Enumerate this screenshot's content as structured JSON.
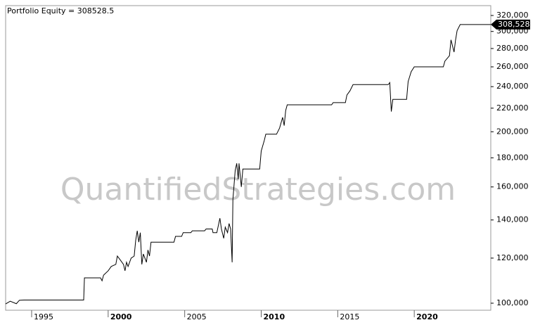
{
  "chart_data": {
    "type": "line",
    "title": "Portfolio Equity = 308528.5",
    "watermark": "QuantifiedStrategies.com",
    "end_label": "308,528",
    "end_value": 308528,
    "log_y": true,
    "color": "#000000",
    "xlim": [
      1993.3,
      2025
    ],
    "xticks": [
      1995,
      2000,
      2005,
      2010,
      2015,
      2020
    ],
    "ylim": [
      97200,
      333000
    ],
    "yticks": [
      {
        "value": 100000,
        "label": "100,000"
      },
      {
        "value": 120000,
        "label": "120,000"
      },
      {
        "value": 140000,
        "label": "140,000"
      },
      {
        "value": 160000,
        "label": "160,000"
      },
      {
        "value": 180000,
        "label": "180,000"
      },
      {
        "value": 200000,
        "label": "200,000"
      },
      {
        "value": 220000,
        "label": "220,000"
      },
      {
        "value": 240000,
        "label": "240,000"
      },
      {
        "value": 260000,
        "label": "260,000"
      },
      {
        "value": 280000,
        "label": "280,000"
      },
      {
        "value": 300000,
        "label": "300,000"
      },
      {
        "value": 320000,
        "label": "320,000"
      }
    ],
    "x": [
      1993.3,
      1993.6,
      1994.0,
      1994.2,
      1994.5,
      1998.4,
      1998.45,
      1999.5,
      1999.6,
      1999.7,
      2000.0,
      2000.2,
      2000.5,
      2000.6,
      2000.8,
      2001.0,
      2001.1,
      2001.2,
      2001.3,
      2001.5,
      2001.7,
      2001.8,
      2001.9,
      2002.0,
      2002.1,
      2002.2,
      2002.3,
      2002.5,
      2002.6,
      2002.7,
      2002.8,
      2004.3,
      2004.4,
      2004.8,
      2004.9,
      2005.4,
      2005.5,
      2006.3,
      2006.4,
      2006.8,
      2006.85,
      2007.1,
      2007.3,
      2007.4,
      2007.55,
      2007.65,
      2007.8,
      2007.9,
      2008.0,
      2008.1,
      2008.15,
      2008.3,
      2008.4,
      2008.5,
      2008.55,
      2008.7,
      2008.8,
      2009.9,
      2010.0,
      2010.2,
      2010.3,
      2011.0,
      2011.2,
      2011.4,
      2011.5,
      2011.6,
      2011.7,
      2014.6,
      2014.7,
      2015.5,
      2015.6,
      2015.8,
      2016.0,
      2018.3,
      2018.4,
      2018.5,
      2018.6,
      2019.5,
      2019.6,
      2019.8,
      2020.0,
      2021.9,
      2022.0,
      2022.3,
      2022.4,
      2022.6,
      2022.7,
      2022.8,
      2023.0,
      2025.0
    ],
    "values": [
      99700,
      100800,
      99800,
      101200,
      101300,
      101300,
      110800,
      110800,
      109500,
      112000,
      114000,
      116000,
      117000,
      121000,
      119000,
      117000,
      114000,
      118000,
      116000,
      120000,
      121000,
      129000,
      134000,
      128000,
      133000,
      117000,
      122000,
      118000,
      124000,
      121000,
      128000,
      128000,
      131000,
      131000,
      133000,
      133000,
      134000,
      134000,
      135000,
      135000,
      133000,
      133000,
      141000,
      135000,
      130000,
      136000,
      133000,
      138000,
      135000,
      118000,
      152000,
      171000,
      176000,
      165000,
      176000,
      160000,
      172000,
      172000,
      185000,
      193000,
      198000,
      198000,
      203000,
      212000,
      205000,
      218000,
      223000,
      223000,
      225000,
      225000,
      232000,
      236000,
      242000,
      242000,
      244000,
      217000,
      228000,
      228000,
      245000,
      255000,
      260000,
      260000,
      266000,
      272000,
      290000,
      276000,
      290000,
      301000,
      308528.5,
      308528.5
    ]
  }
}
